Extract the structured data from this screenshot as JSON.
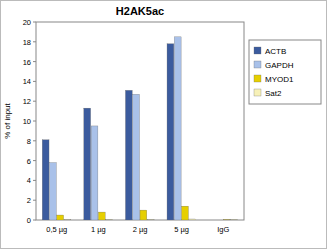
{
  "chart_data": {
    "type": "bar",
    "title": "H2AK5ac",
    "y_label": "% of input",
    "categories": [
      "0,5 µg",
      "1 µg",
      "2 µg",
      "5 µg",
      "IgG"
    ],
    "series": [
      {
        "name": "ACTB",
        "color": "#3b5b9e",
        "values": [
          8.1,
          11.3,
          13.1,
          17.8,
          0
        ]
      },
      {
        "name": "GAPDH",
        "color": "#a9c1e9",
        "values": [
          5.8,
          9.5,
          12.7,
          18.5,
          0
        ]
      },
      {
        "name": "MYOD1",
        "color": "#e6cf00",
        "values": [
          0.5,
          0.8,
          1.0,
          1.4,
          0.05
        ]
      },
      {
        "name": "Sat2",
        "color": "#f7f1b8",
        "values": [
          0.05,
          0.05,
          0.05,
          0.1,
          0.05
        ]
      }
    ],
    "ylim": [
      0,
      20
    ],
    "yticks": [
      0,
      2,
      4,
      6,
      8,
      10,
      12,
      14,
      16,
      18,
      20
    ],
    "grid": false,
    "legend": "right"
  }
}
